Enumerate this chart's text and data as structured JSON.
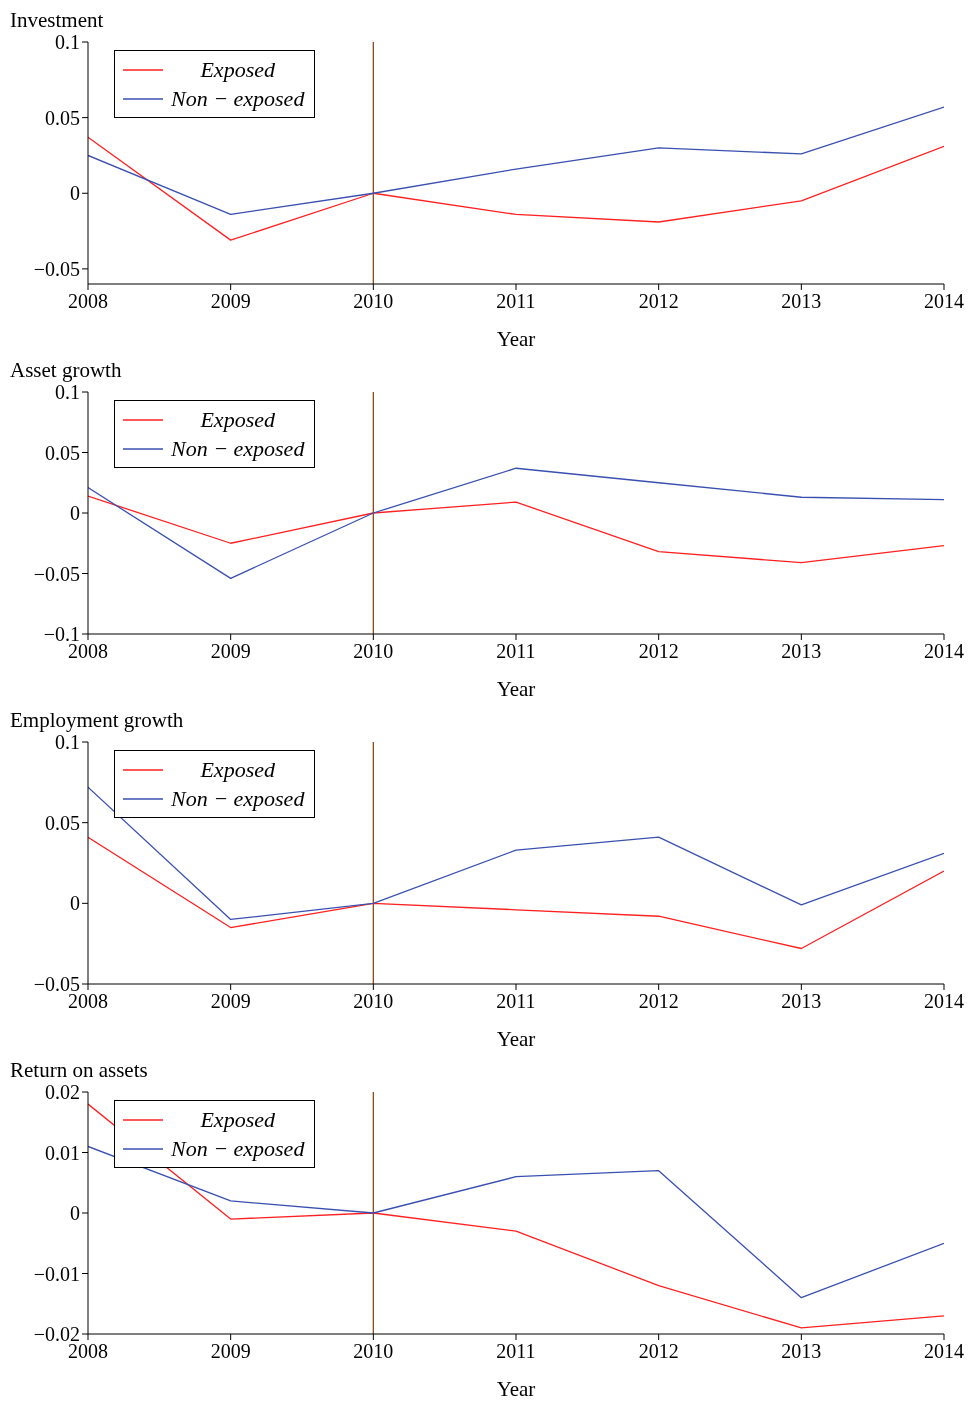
{
  "chart_data": [
    {
      "type": "line",
      "title": "Investment",
      "xlabel": "Year",
      "x": [
        2008,
        2009,
        2010,
        2011,
        2012,
        2013,
        2014
      ],
      "xlim": [
        2008,
        2014
      ],
      "xticks": [
        2008,
        2009,
        2010,
        2011,
        2012,
        2013,
        2014
      ],
      "ylim": [
        -0.06,
        0.1
      ],
      "yticks": [
        {
          "value": -0.05,
          "label": "−0.05"
        },
        0,
        0.05,
        0.1
      ],
      "grid": false,
      "legend": "top left",
      "marker": "none",
      "line_style": "solid",
      "series": [
        {
          "name": "Exposed",
          "color": "#ff2020",
          "values": [
            0.037,
            -0.031,
            0,
            -0.014,
            -0.019,
            -0.005,
            0.031
          ]
        },
        {
          "name": "Non − exposed",
          "color": "#3a50b0",
          "values": [
            0.025,
            -0.014,
            0,
            0.016,
            0.03,
            0.026,
            0.057
          ]
        }
      ],
      "ref_lines": [
        {
          "axis": "x",
          "value": 2010,
          "color": "#8b4a1c"
        }
      ]
    },
    {
      "type": "line",
      "title": "Asset growth",
      "xlabel": "Year",
      "x": [
        2008,
        2009,
        2010,
        2011,
        2012,
        2013,
        2014
      ],
      "xlim": [
        2008,
        2014
      ],
      "xticks": [
        2008,
        2009,
        2010,
        2011,
        2012,
        2013,
        2014
      ],
      "ylim": [
        -0.1,
        0.1
      ],
      "yticks": [
        {
          "value": -0.1,
          "label": "−0.1"
        },
        {
          "value": -0.05,
          "label": "−0.05"
        },
        0,
        0.05,
        0.1
      ],
      "grid": false,
      "legend": "top left",
      "marker": "none",
      "line_style": "solid",
      "series": [
        {
          "name": "Exposed",
          "color": "#ff2020",
          "values": [
            0.014,
            -0.025,
            0,
            0.009,
            -0.032,
            -0.041,
            -0.027
          ]
        },
        {
          "name": "Non − exposed",
          "color": "#3a50b0",
          "values": [
            0.021,
            -0.054,
            0,
            0.037,
            0.025,
            0.013,
            0.011
          ]
        }
      ],
      "ref_lines": [
        {
          "axis": "x",
          "value": 2010,
          "color": "#8b4a1c"
        }
      ]
    },
    {
      "type": "line",
      "title": "Employment growth",
      "xlabel": "Year",
      "x": [
        2008,
        2009,
        2010,
        2011,
        2012,
        2013,
        2014
      ],
      "xlim": [
        2008,
        2014
      ],
      "xticks": [
        2008,
        2009,
        2010,
        2011,
        2012,
        2013,
        2014
      ],
      "ylim": [
        -0.05,
        0.1
      ],
      "yticks": [
        {
          "value": -0.05,
          "label": "−0.05"
        },
        0,
        0.05,
        0.1
      ],
      "grid": false,
      "legend": "top left",
      "marker": "none",
      "line_style": "solid",
      "series": [
        {
          "name": "Exposed",
          "color": "#ff2020",
          "values": [
            0.041,
            -0.015,
            0,
            -0.004,
            -0.008,
            -0.028,
            0.02
          ]
        },
        {
          "name": "Non − exposed",
          "color": "#3a50b0",
          "values": [
            0.072,
            -0.01,
            0,
            0.033,
            0.041,
            -0.001,
            0.031
          ]
        }
      ],
      "ref_lines": [
        {
          "axis": "x",
          "value": 2010,
          "color": "#8b4a1c"
        }
      ]
    },
    {
      "type": "line",
      "title": "Return on assets",
      "xlabel": "Year",
      "x": [
        2008,
        2009,
        2010,
        2011,
        2012,
        2013,
        2014
      ],
      "xlim": [
        2008,
        2014
      ],
      "xticks": [
        2008,
        2009,
        2010,
        2011,
        2012,
        2013,
        2014
      ],
      "ylim": [
        -0.02,
        0.02
      ],
      "yticks": [
        {
          "value": -0.02,
          "label": "−0.02"
        },
        {
          "value": -0.01,
          "label": "−0.01"
        },
        0,
        0.01,
        0.02
      ],
      "grid": false,
      "legend": "top left",
      "marker": "none",
      "line_style": "solid",
      "series": [
        {
          "name": "Exposed",
          "color": "#ff2020",
          "values": [
            0.018,
            -0.001,
            0,
            -0.003,
            -0.012,
            -0.019,
            -0.017
          ]
        },
        {
          "name": "Non − exposed",
          "color": "#3a50b0",
          "values": [
            0.011,
            0.002,
            0,
            0.006,
            0.007,
            -0.014,
            -0.005
          ]
        }
      ],
      "ref_lines": [
        {
          "axis": "x",
          "value": 2010,
          "color": "#8b4a1c"
        }
      ]
    }
  ]
}
